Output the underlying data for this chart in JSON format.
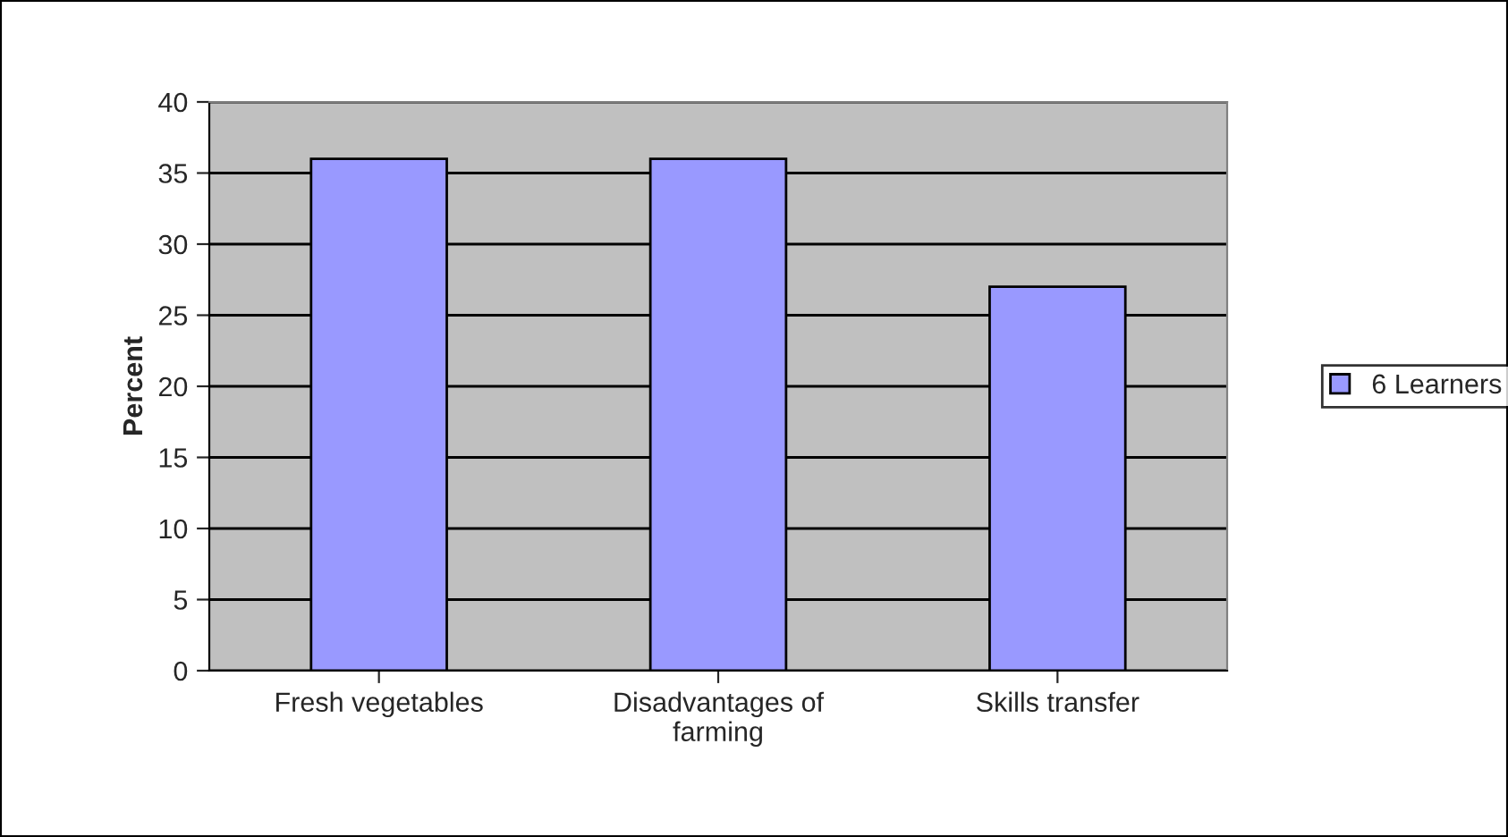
{
  "chart_data": {
    "type": "bar",
    "ylabel": "Percent",
    "categories": [
      "Fresh vegetables",
      "Disadvantages of\nfarming",
      "Skills transfer"
    ],
    "series": [
      {
        "name": "6 Learners",
        "color": "#9999ff",
        "values": [
          36,
          36,
          27
        ]
      }
    ],
    "ylim": [
      0,
      40
    ],
    "yticks": [
      0,
      5,
      10,
      15,
      20,
      25,
      30,
      35,
      40
    ],
    "grid": "y",
    "legend": "right"
  }
}
